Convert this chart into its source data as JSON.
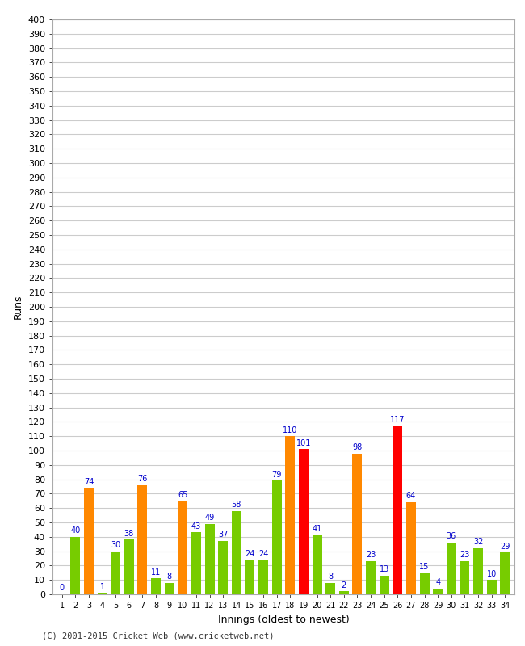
{
  "xlabel": "Innings (oldest to newest)",
  "ylabel": "Runs",
  "copyright": "(C) 2001-2015 Cricket Web (www.cricketweb.net)",
  "ylim": [
    0,
    400
  ],
  "background_color": "#ffffff",
  "plot_bg_color": "#ffffff",
  "grid_color": "#cccccc",
  "innings": [
    1,
    2,
    3,
    4,
    5,
    6,
    7,
    8,
    9,
    10,
    11,
    12,
    13,
    14,
    15,
    16,
    17,
    18,
    19,
    20,
    21,
    22,
    23,
    24,
    25,
    26,
    27,
    28,
    29,
    30,
    31,
    32,
    33,
    34
  ],
  "values": [
    0,
    40,
    74,
    1,
    30,
    38,
    76,
    11,
    8,
    65,
    43,
    49,
    37,
    58,
    24,
    24,
    79,
    110,
    101,
    41,
    8,
    2,
    98,
    23,
    13,
    117,
    64,
    15,
    4,
    36,
    23,
    32,
    10,
    29
  ],
  "colors": [
    "#77cc00",
    "#77cc00",
    "#ff8800",
    "#77cc00",
    "#77cc00",
    "#77cc00",
    "#ff8800",
    "#77cc00",
    "#77cc00",
    "#ff8800",
    "#77cc00",
    "#77cc00",
    "#77cc00",
    "#77cc00",
    "#77cc00",
    "#77cc00",
    "#77cc00",
    "#ff8800",
    "#ff0000",
    "#77cc00",
    "#77cc00",
    "#77cc00",
    "#ff8800",
    "#77cc00",
    "#77cc00",
    "#ff0000",
    "#ff8800",
    "#77cc00",
    "#77cc00",
    "#77cc00",
    "#77cc00",
    "#77cc00",
    "#77cc00",
    "#77cc00"
  ],
  "label_color": "#0000cc",
  "label_fontsize": 7,
  "axis_label_fontsize": 9,
  "ytick_fontsize": 8,
  "xtick_fontsize": 7,
  "show_zero_label": true,
  "bar_width": 0.72
}
